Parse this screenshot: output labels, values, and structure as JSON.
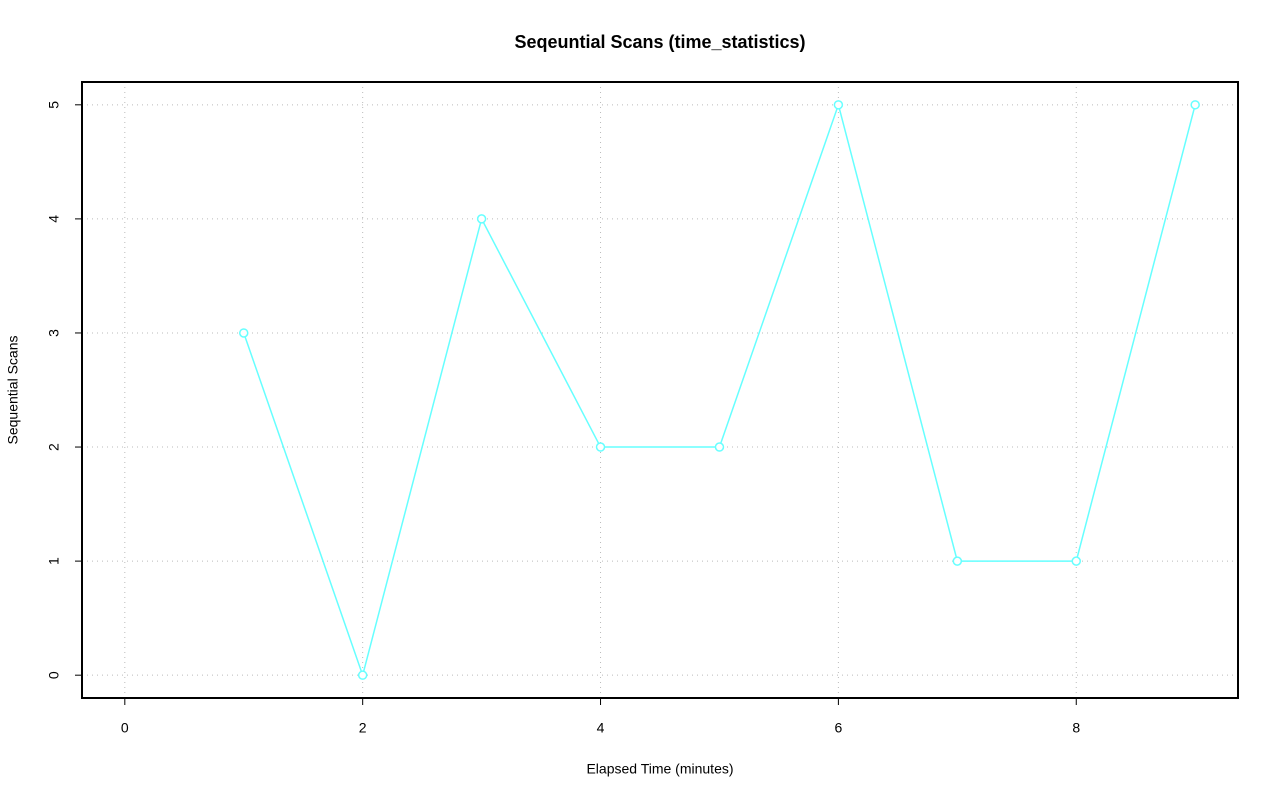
{
  "chart_data": {
    "type": "line",
    "title": "Seqeuntial Scans (time_statistics)",
    "x_label": "Elapsed Time (minutes)",
    "y_label": "Sequential Scans",
    "x": [
      1,
      2,
      3,
      4,
      5,
      6,
      7,
      8,
      9
    ],
    "series": [
      {
        "name": "Sequential Scans",
        "color": "#66ffff",
        "values": [
          3,
          0,
          4,
          2,
          2,
          5,
          1,
          1,
          5
        ]
      }
    ],
    "xlim": [
      -0.36,
      9.36
    ],
    "xticks": [
      0,
      2,
      4,
      6,
      8
    ],
    "ylim": [
      -0.2,
      5.2
    ],
    "yticks": [
      0,
      1,
      2,
      3,
      4,
      5
    ],
    "grid": true
  }
}
